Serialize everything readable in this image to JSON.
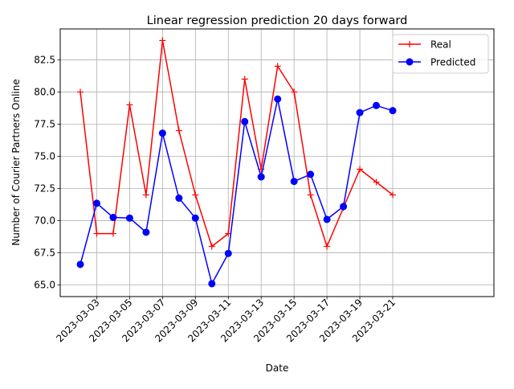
{
  "chart_data": {
    "type": "line",
    "title": "Linear regression prediction 20 days forward",
    "xlabel": "Date",
    "ylabel": "Number of Courier Partners Online",
    "x": [
      "2023-03-02",
      "2023-03-03",
      "2023-03-04",
      "2023-03-05",
      "2023-03-06",
      "2023-03-07",
      "2023-03-08",
      "2023-03-09",
      "2023-03-10",
      "2023-03-11",
      "2023-03-12",
      "2023-03-13",
      "2023-03-14",
      "2023-03-15",
      "2023-03-16",
      "2023-03-17",
      "2023-03-18",
      "2023-03-19",
      "2023-03-20",
      "2023-03-21"
    ],
    "x_ticks": [
      "2023-03-03",
      "2023-03-05",
      "2023-03-07",
      "2023-03-09",
      "2023-03-11",
      "2023-03-13",
      "2023-03-15",
      "2023-03-17",
      "2023-03-19",
      "2023-03-21"
    ],
    "y_ticks": [
      "65.0",
      "67.5",
      "70.0",
      "72.5",
      "75.0",
      "77.5",
      "80.0",
      "82.5"
    ],
    "ylim": [
      64.1,
      84.9
    ],
    "grid": true,
    "legend_position": "top-right",
    "series": [
      {
        "name": "Real",
        "color": "#ff0000",
        "marker": "plus",
        "values": [
          80,
          69,
          69,
          79,
          72,
          84,
          77,
          72,
          68,
          69,
          81,
          74,
          82,
          80,
          72,
          68,
          71,
          74,
          73,
          72
        ]
      },
      {
        "name": "Predicted",
        "color": "#0000ff",
        "marker": "circle",
        "values": [
          66.6,
          71.35,
          70.25,
          70.2,
          69.1,
          76.8,
          71.75,
          70.2,
          65.1,
          67.45,
          77.7,
          73.4,
          79.45,
          73.05,
          73.6,
          70.1,
          71.1,
          78.4,
          78.95,
          78.55
        ]
      }
    ]
  }
}
